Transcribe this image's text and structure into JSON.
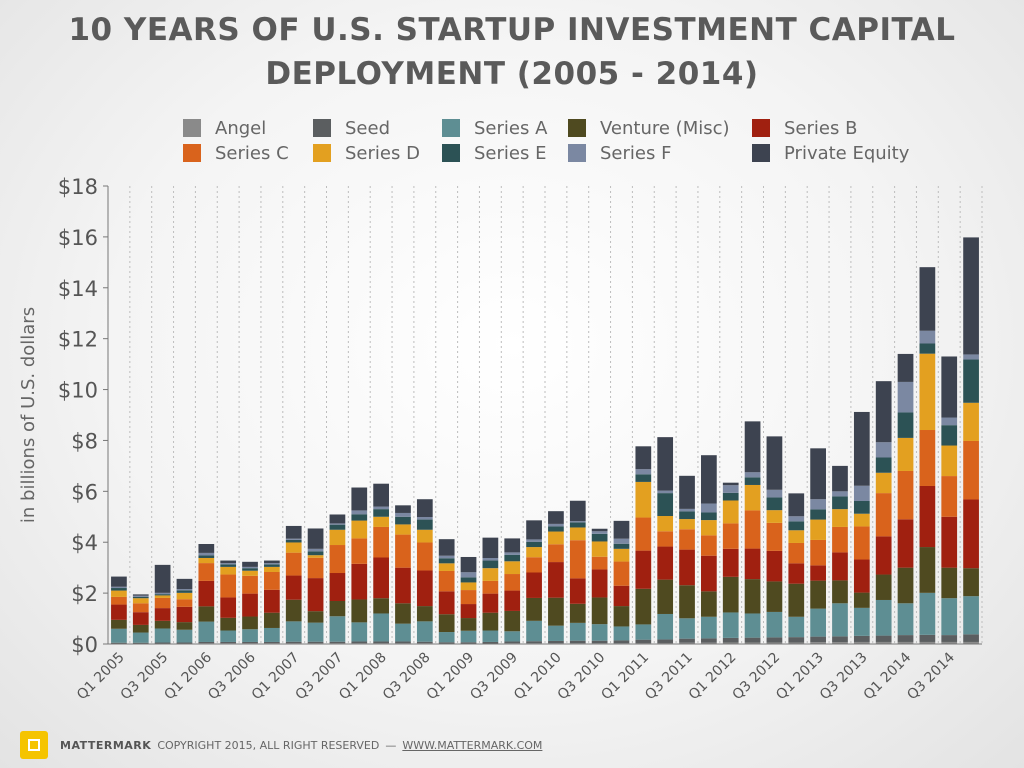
{
  "slide": {
    "title_line1": "10 YEARS OF U.S. STARTUP INVESTMENT CAPITAL",
    "title_line2": "DEPLOYMENT (2005 - 2014)"
  },
  "footer": {
    "brand": "MATTERMARK",
    "copyright": "COPYRIGHT 2015, ALL RIGHT RESERVED",
    "separator": "—",
    "url": "WWW.MATTERMARK.COM"
  },
  "chart_data": {
    "type": "bar",
    "stacked": true,
    "title": "10 YEARS OF U.S. STARTUP INVESTMENT CAPITAL DEPLOYMENT (2005 - 2014)",
    "xlabel": "",
    "ylabel": "in billions of U.S. dollars",
    "ylim": [
      0,
      18
    ],
    "yticks": [
      0,
      2,
      4,
      6,
      8,
      10,
      12,
      14,
      16,
      18
    ],
    "ytick_labels": [
      "$0",
      "$2",
      "$4",
      "$6",
      "$8",
      "$10",
      "$12",
      "$14",
      "$16",
      "$18"
    ],
    "grid": "vertical-dashed",
    "legend_position": "top",
    "categories": [
      "Q1 2005",
      "Q2 2005",
      "Q3 2005",
      "Q4 2005",
      "Q1 2006",
      "Q2 2006",
      "Q3 2006",
      "Q4 2006",
      "Q1 2007",
      "Q2 2007",
      "Q3 2007",
      "Q4 2007",
      "Q1 2008",
      "Q2 2008",
      "Q3 2008",
      "Q4 2008",
      "Q1 2009",
      "Q2 2009",
      "Q3 2009",
      "Q4 2009",
      "Q1 2010",
      "Q2 2010",
      "Q3 2010",
      "Q4 2010",
      "Q1 2011",
      "Q2 2011",
      "Q3 2011",
      "Q4 2011",
      "Q1 2012",
      "Q2 2012",
      "Q3 2012",
      "Q4 2012",
      "Q1 2013",
      "Q2 2013",
      "Q3 2013",
      "Q4 2013",
      "Q1 2014",
      "Q2 2014",
      "Q3 2014",
      "Q4 2014"
    ],
    "x_tick_labels": [
      "Q1 2005",
      "",
      "Q3 2005",
      "",
      "Q1 2006",
      "",
      "Q3 2006",
      "",
      "Q1 2007",
      "",
      "Q3 2007",
      "",
      "Q1 2008",
      "",
      "Q3 2008",
      "",
      "Q1 2009",
      "",
      "Q3 2009",
      "",
      "Q1 2010",
      "",
      "Q3 2010",
      "",
      "Q1 2011",
      "",
      "Q3 2011",
      "",
      "Q1 2012",
      "",
      "Q3 2012",
      "",
      "Q1 2013",
      "",
      "Q3 2013",
      "",
      "Q1 2014",
      "",
      "Q3 2014",
      ""
    ],
    "series": [
      {
        "name": "Angel",
        "color": "#8a8a8a",
        "values": [
          0.02,
          0.02,
          0.02,
          0.02,
          0.03,
          0.03,
          0.03,
          0.03,
          0.03,
          0.03,
          0.03,
          0.03,
          0.03,
          0.03,
          0.03,
          0.02,
          0.02,
          0.02,
          0.03,
          0.03,
          0.03,
          0.03,
          0.03,
          0.03,
          0.04,
          0.04,
          0.05,
          0.05,
          0.06,
          0.06,
          0.06,
          0.06,
          0.07,
          0.07,
          0.08,
          0.08,
          0.08,
          0.08,
          0.08,
          0.08
        ]
      },
      {
        "name": "Seed",
        "color": "#5b5e60",
        "values": [
          0.03,
          0.03,
          0.04,
          0.04,
          0.05,
          0.05,
          0.05,
          0.05,
          0.06,
          0.06,
          0.06,
          0.07,
          0.07,
          0.07,
          0.06,
          0.05,
          0.05,
          0.06,
          0.07,
          0.08,
          0.09,
          0.1,
          0.1,
          0.11,
          0.13,
          0.14,
          0.16,
          0.17,
          0.18,
          0.19,
          0.2,
          0.21,
          0.22,
          0.23,
          0.24,
          0.25,
          0.27,
          0.28,
          0.27,
          0.3
        ]
      },
      {
        "name": "Series A",
        "color": "#5e8e93",
        "values": [
          0.55,
          0.4,
          0.55,
          0.5,
          0.8,
          0.45,
          0.5,
          0.55,
          0.8,
          0.75,
          1.0,
          0.75,
          1.1,
          0.7,
          0.8,
          0.4,
          0.45,
          0.45,
          0.4,
          0.8,
          0.6,
          0.7,
          0.65,
          0.55,
          0.6,
          1.0,
          0.8,
          0.85,
          1.0,
          0.95,
          1.0,
          0.8,
          1.1,
          1.3,
          1.1,
          1.4,
          1.25,
          1.65,
          1.45,
          1.5
        ]
      },
      {
        "name": "Venture (Misc)",
        "color": "#4f4a20",
        "values": [
          0.35,
          0.3,
          0.3,
          0.3,
          0.6,
          0.5,
          0.5,
          0.6,
          0.85,
          0.45,
          0.6,
          0.9,
          0.6,
          0.8,
          0.6,
          0.7,
          0.5,
          0.7,
          0.8,
          0.9,
          1.1,
          0.75,
          1.05,
          0.8,
          1.4,
          1.35,
          1.3,
          1.0,
          1.4,
          1.35,
          1.2,
          1.3,
          1.1,
          0.9,
          0.6,
          1.0,
          1.4,
          1.8,
          1.2,
          1.1
        ]
      },
      {
        "name": "Series B",
        "color": "#a02010",
        "values": [
          0.6,
          0.5,
          0.5,
          0.6,
          1.0,
          0.8,
          0.9,
          0.9,
          0.95,
          1.3,
          1.1,
          1.4,
          1.6,
          1.4,
          1.4,
          0.9,
          0.55,
          0.75,
          0.8,
          1.0,
          1.4,
          1.0,
          1.1,
          0.8,
          1.5,
          1.3,
          1.4,
          1.4,
          1.1,
          1.2,
          1.2,
          0.8,
          0.6,
          1.1,
          1.3,
          1.5,
          1.9,
          2.4,
          2.0,
          2.7
        ]
      },
      {
        "name": "Series C",
        "color": "#d9631c",
        "values": [
          0.3,
          0.35,
          0.4,
          0.3,
          0.7,
          0.9,
          0.7,
          0.7,
          0.9,
          0.8,
          1.1,
          1.0,
          1.2,
          1.3,
          1.1,
          0.8,
          0.55,
          0.5,
          0.65,
          0.6,
          0.7,
          1.5,
          0.5,
          0.95,
          1.3,
          0.6,
          0.8,
          0.8,
          1.0,
          1.5,
          1.1,
          0.8,
          1.0,
          1.0,
          1.3,
          1.7,
          1.9,
          2.2,
          1.6,
          2.3
        ]
      },
      {
        "name": "Series D",
        "color": "#e3a020",
        "values": [
          0.25,
          0.2,
          0.1,
          0.25,
          0.2,
          0.3,
          0.2,
          0.2,
          0.4,
          0.1,
          0.6,
          0.7,
          0.4,
          0.4,
          0.5,
          0.3,
          0.3,
          0.5,
          0.5,
          0.4,
          0.5,
          0.5,
          0.6,
          0.5,
          1.4,
          0.6,
          0.4,
          0.6,
          0.9,
          1.0,
          0.5,
          0.5,
          0.8,
          0.7,
          0.5,
          0.8,
          1.3,
          3.0,
          1.2,
          1.5
        ]
      },
      {
        "name": "Series E",
        "color": "#2c5255",
        "values": [
          0.1,
          0.05,
          0.05,
          0.1,
          0.1,
          0.1,
          0.1,
          0.1,
          0.1,
          0.15,
          0.2,
          0.25,
          0.3,
          0.3,
          0.4,
          0.2,
          0.2,
          0.3,
          0.25,
          0.2,
          0.2,
          0.2,
          0.3,
          0.2,
          0.3,
          0.9,
          0.3,
          0.3,
          0.3,
          0.3,
          0.5,
          0.35,
          0.4,
          0.5,
          0.5,
          0.6,
          1.0,
          0.4,
          0.8,
          1.7
        ]
      },
      {
        "name": "Series F",
        "color": "#7b88a2",
        "values": [
          0.05,
          0.05,
          0.05,
          0.05,
          0.1,
          0.05,
          0.05,
          0.05,
          0.05,
          0.1,
          0.05,
          0.15,
          0.1,
          0.15,
          0.1,
          0.1,
          0.2,
          0.1,
          0.1,
          0.1,
          0.1,
          0.05,
          0.1,
          0.2,
          0.2,
          0.1,
          0.1,
          0.35,
          0.3,
          0.2,
          0.3,
          0.2,
          0.4,
          0.2,
          0.6,
          0.6,
          1.2,
          0.5,
          0.3,
          0.2
        ]
      },
      {
        "name": "Private Equity",
        "color": "#3d4350",
        "values": [
          0.4,
          0.05,
          1.1,
          0.4,
          0.35,
          0.1,
          0.2,
          0.1,
          0.5,
          0.8,
          0.35,
          0.9,
          0.9,
          0.3,
          0.7,
          0.65,
          0.6,
          0.8,
          0.55,
          0.75,
          0.5,
          0.8,
          0.1,
          0.7,
          0.9,
          2.1,
          1.3,
          1.9,
          0.1,
          2.0,
          2.1,
          0.9,
          2.0,
          1.0,
          2.9,
          2.4,
          1.1,
          2.5,
          2.4,
          4.6
        ]
      }
    ]
  }
}
